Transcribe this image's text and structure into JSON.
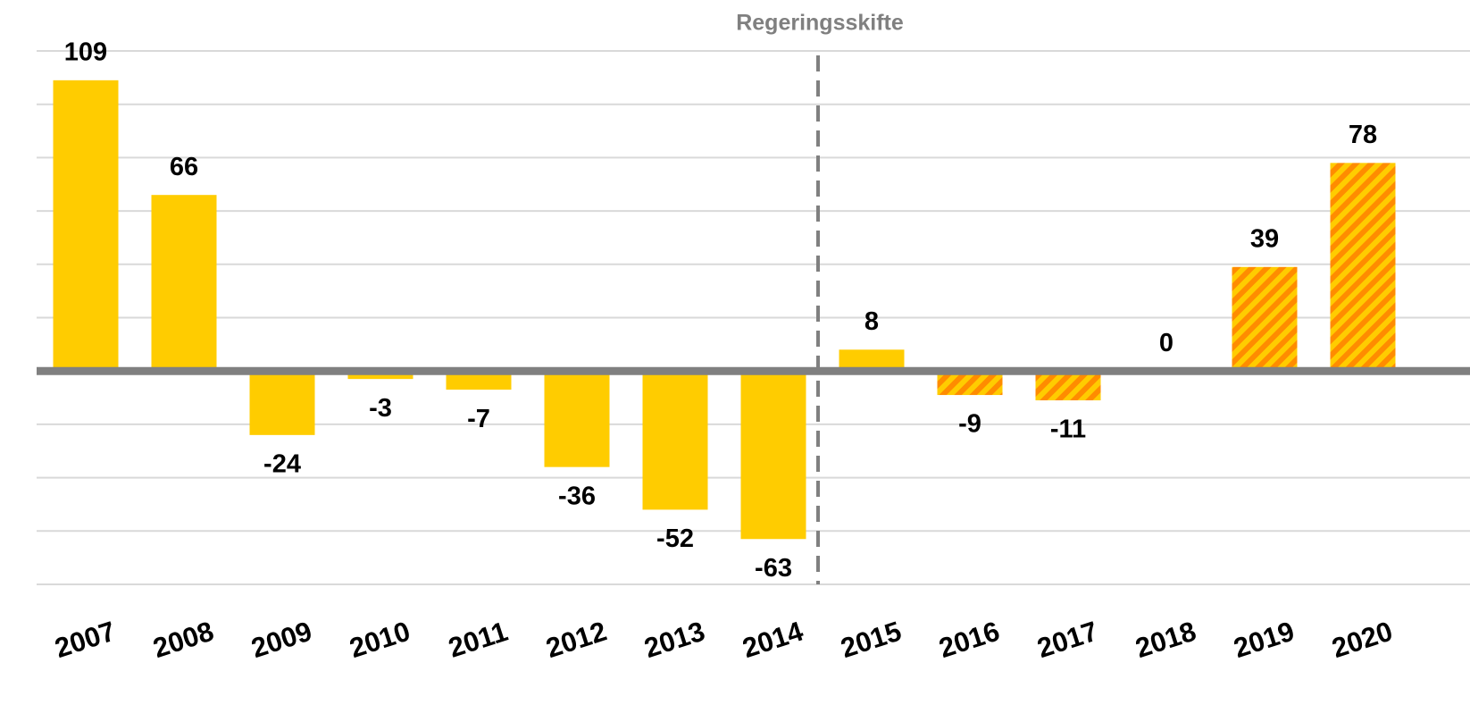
{
  "chart_data": {
    "type": "bar",
    "annotation": "Regeringsskifte",
    "categories": [
      "2007",
      "2008",
      "2009",
      "2010",
      "2011",
      "2012",
      "2013",
      "2014",
      "2015",
      "2016",
      "2017",
      "2018",
      "2019",
      "2020"
    ],
    "values": [
      109,
      66,
      -24,
      -3,
      -7,
      -36,
      -52,
      -63,
      8,
      -9,
      -11,
      0,
      39,
      78
    ],
    "hatched": [
      false,
      false,
      false,
      false,
      false,
      false,
      false,
      false,
      false,
      true,
      true,
      true,
      true,
      true
    ],
    "color": "#ffcc00",
    "hatch_color": "#ff8c00",
    "ylim": [
      -80,
      120
    ],
    "yticks": [
      -80,
      -60,
      -40,
      -20,
      0,
      20,
      40,
      60,
      80,
      100,
      120
    ],
    "grid": true
  }
}
